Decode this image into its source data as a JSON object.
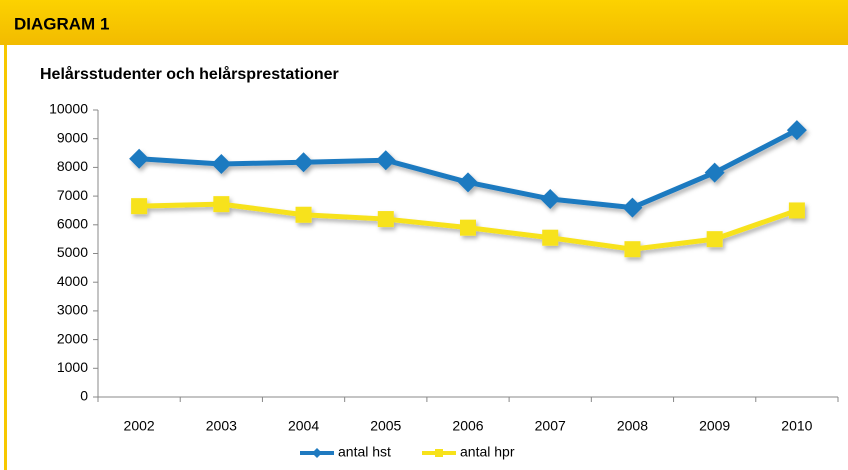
{
  "header": {
    "title": "DIAGRAM 1"
  },
  "chart_data": {
    "type": "line",
    "title": "Helårsstudenter och helårsprestationer",
    "categories": [
      "2002",
      "2003",
      "2004",
      "2005",
      "2006",
      "2007",
      "2008",
      "2009",
      "2010"
    ],
    "series": [
      {
        "name": "antal hst",
        "color": "#1f7ac0",
        "marker": "diamond",
        "values": [
          8300,
          8120,
          8180,
          8250,
          7480,
          6900,
          6600,
          7820,
          9300
        ]
      },
      {
        "name": "antal hpr",
        "color": "#f7e21a",
        "marker": "square",
        "values": [
          6650,
          6720,
          6350,
          6200,
          5900,
          5550,
          5150,
          5500,
          6500
        ]
      }
    ],
    "ylim": [
      0,
      10000
    ],
    "yticks": [
      0,
      1000,
      2000,
      3000,
      4000,
      5000,
      6000,
      7000,
      8000,
      9000,
      10000
    ],
    "grid": false,
    "legend": "bottom"
  }
}
